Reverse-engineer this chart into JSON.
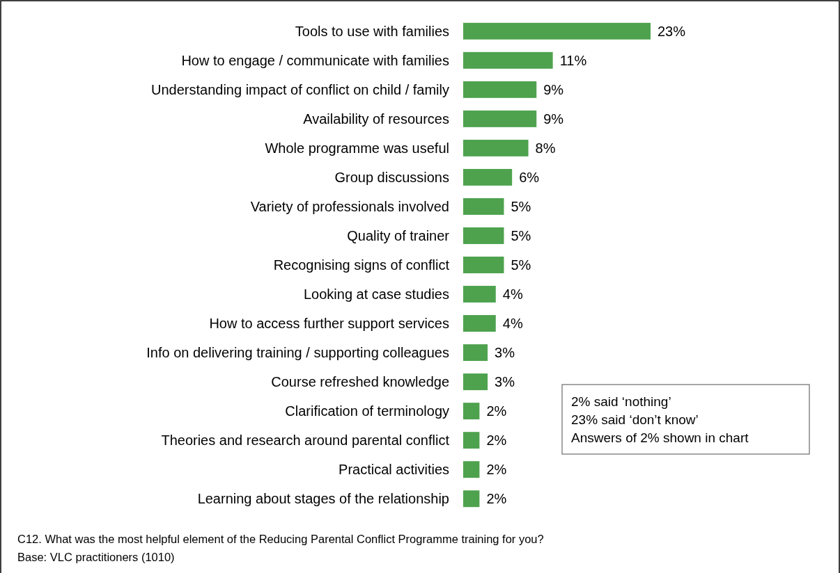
{
  "chart_data": {
    "type": "bar",
    "orientation": "horizontal",
    "color": "#4ea24e",
    "categories": [
      "Tools to use with families",
      "How to engage / communicate with families",
      "Understanding impact of conflict on child / family",
      "Availability of resources",
      "Whole programme was useful",
      "Group discussions",
      "Variety of professionals involved",
      "Quality of trainer",
      "Recognising signs of conflict",
      "Looking at case studies",
      "How to access further support services",
      "Info on delivering training / supporting colleagues",
      "Course refreshed knowledge",
      "Clarification of terminology",
      "Theories and research around parental conflict",
      "Practical activities",
      "Learning about stages of the relationship"
    ],
    "values": [
      23,
      11,
      9,
      9,
      8,
      6,
      5,
      5,
      5,
      4,
      4,
      3,
      3,
      2,
      2,
      2,
      2
    ],
    "value_labels": [
      "23%",
      "11%",
      "9%",
      "9%",
      "8%",
      "6%",
      "5%",
      "5%",
      "5%",
      "4%",
      "4%",
      "3%",
      "3%",
      "2%",
      "2%",
      "2%",
      "2%"
    ],
    "annotations": [
      "2% said ‘nothing’",
      "23% said ‘don’t know’",
      "Answers of 2% shown in chart",
      "C12. What was the most helpful element of the Reducing Parental Conflict Programme training for you?",
      "Base: VLC practitioners (1010)"
    ]
  }
}
